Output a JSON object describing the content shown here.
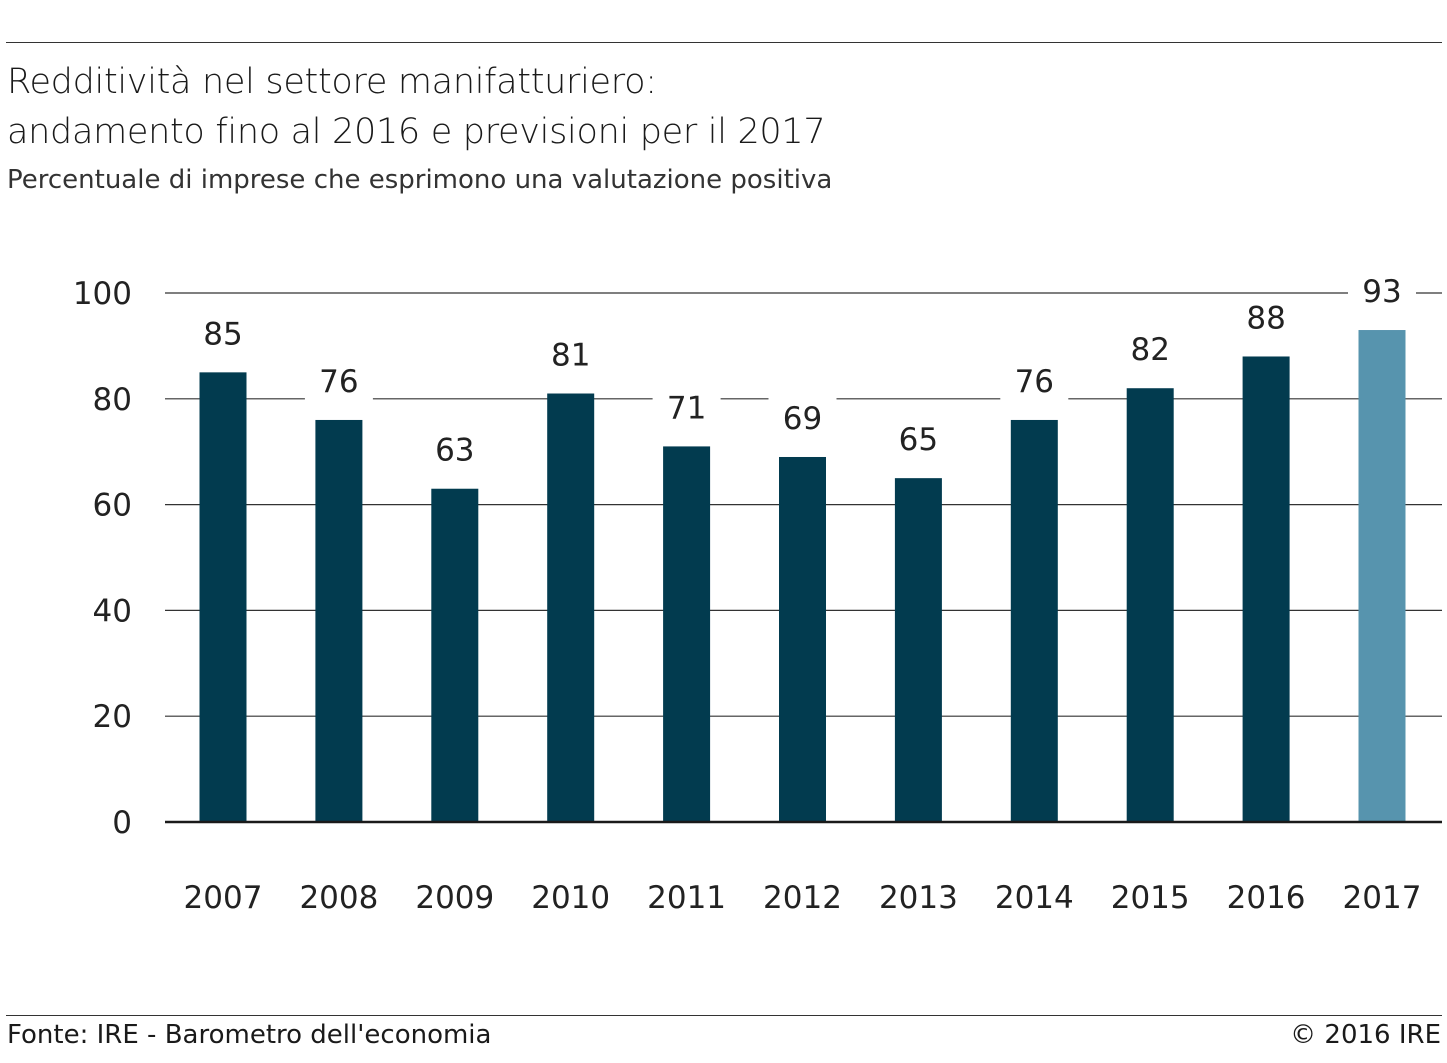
{
  "header": {
    "title_line1": "Redditività nel settore manifatturiero:",
    "title_line2": "andamento fino al 2016 e previsioni per il 2017",
    "subtitle": "Percentuale di imprese che esprimono una valutazione positiva"
  },
  "footer": {
    "source": "Fonte: IRE - Barometro dell'economia",
    "copyright": "© 2016 IRE"
  },
  "chart_data": {
    "type": "bar",
    "title": "Redditività nel settore manifatturiero: andamento fino al 2016 e previsioni per il 2017",
    "subtitle": "Percentuale di imprese che esprimono una valutazione positiva",
    "categories": [
      "2007",
      "2008",
      "2009",
      "2010",
      "2011",
      "2012",
      "2013",
      "2014",
      "2015",
      "2016",
      "2017"
    ],
    "values": [
      85,
      76,
      63,
      81,
      71,
      69,
      65,
      76,
      82,
      88,
      93
    ],
    "data_labels": [
      "85",
      "76",
      "63",
      "81",
      "71",
      "69",
      "65",
      "76",
      "82",
      "88",
      "93"
    ],
    "ylim": [
      0,
      100
    ],
    "yticks": [
      0,
      20,
      40,
      60,
      80,
      100
    ],
    "ytick_labels": [
      "0",
      "20",
      "40",
      "60",
      "80",
      "100"
    ],
    "grid": true,
    "colors": {
      "actual": "#023b4f",
      "forecast": "#5794ae",
      "grid": "#333333"
    },
    "forecast_categories": [
      "2017"
    ]
  }
}
